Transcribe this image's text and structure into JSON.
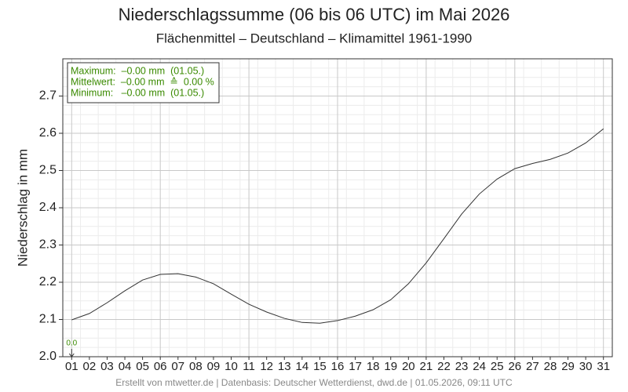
{
  "chart_data": {
    "type": "line",
    "title": "Niederschlagssumme (06 bis 06 UTC) im Mai 2026",
    "subtitle": "Flächenmittel – Deutschland – Klimamittel 1961-1990",
    "y_label": "Niederschlag in mm",
    "categories": [
      "01",
      "02",
      "03",
      "04",
      "05",
      "06",
      "07",
      "08",
      "09",
      "10",
      "11",
      "12",
      "13",
      "14",
      "15",
      "16",
      "17",
      "18",
      "19",
      "20",
      "21",
      "22",
      "23",
      "24",
      "25",
      "26",
      "27",
      "28",
      "29",
      "30",
      "31"
    ],
    "series": [
      {
        "color": "#333333",
        "values": [
          2.099,
          2.116,
          2.145,
          2.177,
          2.206,
          2.221,
          2.223,
          2.214,
          2.196,
          2.168,
          2.141,
          2.12,
          2.103,
          2.092,
          2.09,
          2.097,
          2.109,
          2.126,
          2.153,
          2.196,
          2.252,
          2.317,
          2.383,
          2.437,
          2.477,
          2.505,
          2.519,
          2.53,
          2.547,
          2.574,
          2.612
        ]
      }
    ],
    "ylim": [
      2.0,
      2.8
    ],
    "yticks": [
      {
        "value": 2.0,
        "label": "2.0"
      },
      2.1,
      2.2,
      2.3,
      2.4,
      2.5,
      2.6,
      2.7
    ],
    "grid": true,
    "info_box": [
      "Maximum:  –0.00 mm  (01.05.)",
      "Mittelwert:  –0.00 mm  ≙  0.00 %",
      "Minimum:   –0.00 mm  (01.05.)"
    ],
    "info_color": "#3a8a00",
    "marker_label": "0.0",
    "footer": "Erstellt von mtwetter.de | Datenbasis: Deutscher Wetterdienst, dwd.de | 01.05.2026, 09:11 UTC"
  }
}
